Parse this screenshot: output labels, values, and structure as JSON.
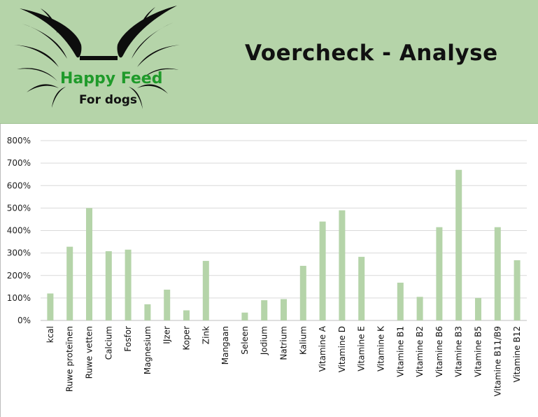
{
  "header": {
    "title": "Voercheck - Analyse",
    "brand_name": "Happy Feed",
    "brand_sub": "For dogs"
  },
  "colors": {
    "header_bg": "#b5d4a9",
    "bar": "#b5d4a9",
    "gridline": "#d9d9d9",
    "brand_green": "#1f9a2a"
  },
  "chart_data": {
    "type": "bar",
    "categories": [
      "kcal",
      "Ruwe proteïnen",
      "Ruwe vetten",
      "Calcium",
      "Fosfor",
      "Magnesium",
      "IJzer",
      "Koper",
      "Zink",
      "Mangaan",
      "Seleen",
      "Jodium",
      "Natrium",
      "Kalium",
      "Vitamine A",
      "Vitamine D",
      "Vitamine E",
      "Vitamine K",
      "Vitamine B1",
      "Vitamine B2",
      "Vitamine B6",
      "Vitamine B3",
      "Vitamine B5",
      "Vitamine B11/B9",
      "Vitamine B12"
    ],
    "values": [
      120,
      328,
      500,
      308,
      315,
      72,
      137,
      45,
      265,
      0,
      35,
      90,
      95,
      243,
      440,
      490,
      283,
      0,
      168,
      105,
      415,
      670,
      100,
      415,
      268
    ],
    "ylim": [
      0,
      800
    ],
    "yticks": [
      0,
      100,
      200,
      300,
      400,
      500,
      600,
      700,
      800
    ],
    "ytick_labels": [
      "0%",
      "100%",
      "200%",
      "300%",
      "400%",
      "500%",
      "600%",
      "700%",
      "800%"
    ],
    "grid": true,
    "title": "",
    "xlabel": "",
    "ylabel": ""
  }
}
